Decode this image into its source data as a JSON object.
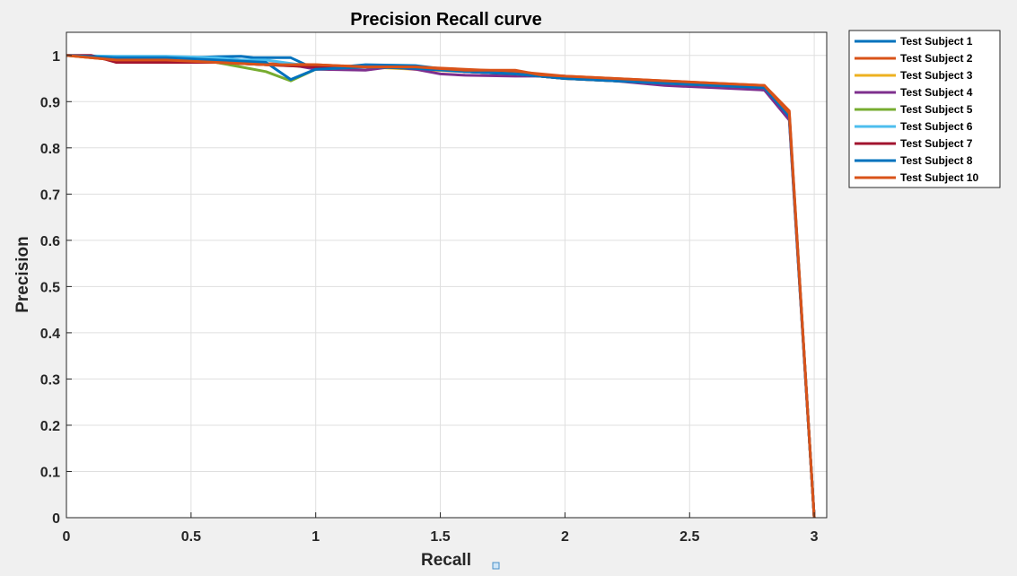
{
  "chart_data": {
    "type": "line",
    "title": "Precision Recall curve",
    "xlabel": "Recall",
    "ylabel": "Precision",
    "xlim": [
      0,
      3.05
    ],
    "ylim": [
      0,
      1.05
    ],
    "xticks": [
      0,
      0.5,
      1,
      1.5,
      2,
      2.5,
      3
    ],
    "xtick_labels": [
      "0",
      "0.5",
      "1",
      "1.5",
      "2",
      "2.5",
      "3"
    ],
    "yticks": [
      0,
      0.1,
      0.2,
      0.3,
      0.4,
      0.5,
      0.6,
      0.7,
      0.8,
      0.9,
      1
    ],
    "ytick_labels": [
      "0",
      "0.1",
      "0.2",
      "0.3",
      "0.4",
      "0.5",
      "0.6",
      "0.7",
      "0.8",
      "0.9",
      "1"
    ],
    "grid": true,
    "legend_position": "outside-top-right",
    "series": [
      {
        "name": "Test Subject 1",
        "color": "#0072bd",
        "x": [
          0,
          0.1,
          0.2,
          0.3,
          0.4,
          0.5,
          0.6,
          0.7,
          0.75,
          0.8,
          0.9,
          1.0,
          1.2,
          1.4,
          1.6,
          1.8,
          2.0,
          2.2,
          2.4,
          2.6,
          2.8,
          2.9,
          3.0
        ],
        "y": [
          1.0,
          0.997,
          0.995,
          0.995,
          0.995,
          0.995,
          0.997,
          0.998,
          0.995,
          0.995,
          0.995,
          0.97,
          0.98,
          0.978,
          0.965,
          0.96,
          0.95,
          0.945,
          0.94,
          0.935,
          0.925,
          0.865,
          0.0
        ]
      },
      {
        "name": "Test Subject 2",
        "color": "#d95319",
        "x": [
          0,
          0.2,
          0.4,
          0.5,
          0.6,
          0.8,
          1.0,
          1.2,
          1.4,
          1.6,
          1.8,
          2.0,
          2.2,
          2.4,
          2.6,
          2.8,
          2.9,
          3.0
        ],
        "y": [
          1.0,
          0.99,
          0.99,
          0.985,
          0.985,
          0.982,
          0.98,
          0.975,
          0.975,
          0.97,
          0.965,
          0.955,
          0.95,
          0.945,
          0.94,
          0.935,
          0.88,
          0.0
        ]
      },
      {
        "name": "Test Subject 3",
        "color": "#edb120",
        "x": [
          0,
          0.2,
          0.4,
          0.6,
          0.8,
          1.0,
          1.2,
          1.4,
          1.6,
          1.8,
          2.0,
          2.2,
          2.4,
          2.6,
          2.8,
          2.9,
          3.0
        ],
        "y": [
          1.0,
          0.99,
          0.99,
          0.985,
          0.98,
          0.975,
          0.975,
          0.97,
          0.965,
          0.96,
          0.95,
          0.945,
          0.94,
          0.935,
          0.93,
          0.87,
          0.0
        ]
      },
      {
        "name": "Test Subject 4",
        "color": "#7e2f8e",
        "x": [
          0,
          0.2,
          0.4,
          0.6,
          0.8,
          0.9,
          1.0,
          1.2,
          1.3,
          1.4,
          1.5,
          1.6,
          1.8,
          2.0,
          2.2,
          2.4,
          2.6,
          2.8,
          2.9,
          3.0
        ],
        "y": [
          1.0,
          0.995,
          0.99,
          0.985,
          0.98,
          0.98,
          0.97,
          0.968,
          0.975,
          0.97,
          0.96,
          0.957,
          0.955,
          0.955,
          0.945,
          0.935,
          0.93,
          0.925,
          0.86,
          0.0
        ]
      },
      {
        "name": "Test Subject 5",
        "color": "#77ac30",
        "x": [
          0,
          0.2,
          0.4,
          0.6,
          0.7,
          0.8,
          0.9,
          1.0,
          1.2,
          1.4,
          1.6,
          1.8,
          2.0,
          2.2,
          2.4,
          2.6,
          2.8,
          2.9,
          3.0
        ],
        "y": [
          1.0,
          0.995,
          0.99,
          0.985,
          0.975,
          0.965,
          0.945,
          0.97,
          0.975,
          0.975,
          0.965,
          0.96,
          0.95,
          0.945,
          0.94,
          0.935,
          0.93,
          0.87,
          0.0
        ]
      },
      {
        "name": "Test Subject 6",
        "color": "#4dbeee",
        "x": [
          0,
          0.2,
          0.4,
          0.6,
          0.7,
          0.8,
          1.0,
          1.2,
          1.4,
          1.6,
          1.8,
          2.0,
          2.2,
          2.4,
          2.6,
          2.8,
          2.9,
          3.0
        ],
        "y": [
          1.0,
          0.998,
          0.998,
          0.995,
          0.99,
          0.99,
          0.975,
          0.975,
          0.975,
          0.965,
          0.96,
          0.95,
          0.945,
          0.94,
          0.935,
          0.93,
          0.87,
          0.0
        ]
      },
      {
        "name": "Test Subject 7",
        "color": "#a2142f",
        "x": [
          0,
          0.1,
          0.2,
          0.3,
          0.4,
          0.5,
          0.6,
          0.8,
          1.0,
          1.2,
          1.4,
          1.6,
          1.8,
          2.0,
          2.2,
          2.4,
          2.6,
          2.8,
          2.9,
          3.0
        ],
        "y": [
          1.0,
          1.0,
          0.985,
          0.985,
          0.985,
          0.985,
          0.985,
          0.98,
          0.975,
          0.975,
          0.975,
          0.965,
          0.96,
          0.95,
          0.945,
          0.94,
          0.935,
          0.93,
          0.87,
          0.0
        ]
      },
      {
        "name": "Test Subject 8",
        "color": "#0072bd",
        "x": [
          0,
          0.2,
          0.4,
          0.6,
          0.8,
          0.9,
          1.0,
          1.2,
          1.4,
          1.6,
          1.8,
          2.0,
          2.2,
          2.4,
          2.6,
          2.8,
          2.9,
          3.0
        ],
        "y": [
          1.0,
          0.995,
          0.995,
          0.99,
          0.985,
          0.948,
          0.97,
          0.975,
          0.972,
          0.965,
          0.96,
          0.95,
          0.945,
          0.94,
          0.935,
          0.93,
          0.868,
          0.0
        ]
      },
      {
        "name": "Test Subject 10",
        "color": "#d95319",
        "x": [
          0,
          0.2,
          0.4,
          0.6,
          0.8,
          1.0,
          1.2,
          1.4,
          1.6,
          1.8,
          1.9,
          2.0,
          2.2,
          2.4,
          2.6,
          2.8,
          2.9,
          3.0
        ],
        "y": [
          1.0,
          0.99,
          0.99,
          0.985,
          0.98,
          0.98,
          0.975,
          0.975,
          0.968,
          0.968,
          0.958,
          0.955,
          0.95,
          0.945,
          0.94,
          0.935,
          0.875,
          0.0
        ]
      }
    ]
  }
}
